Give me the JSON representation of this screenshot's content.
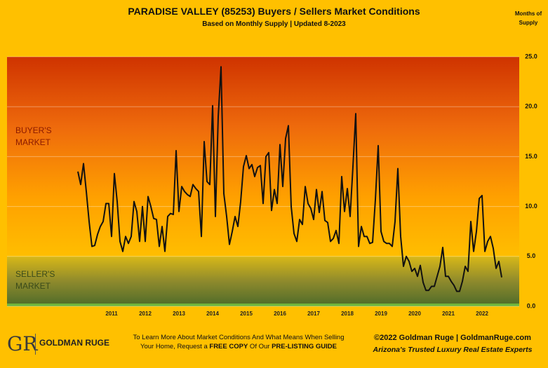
{
  "chart_data": {
    "type": "line",
    "title": "PARADISE VALLEY (85253) Buyers / Sellers Market Conditions",
    "subtitle": "Based on Monthly Supply | Updated 8-2023",
    "y_axis_label": "Months of Supply",
    "zones": {
      "buyer": "BUYER'S MARKET",
      "seller": "SELLER'S MARKET"
    },
    "color": "#111111",
    "ylim": [
      0,
      25
    ],
    "yticks": [
      {
        "value": 0,
        "label": "0.0"
      },
      {
        "value": 5,
        "label": "5.0"
      },
      {
        "value": 10,
        "label": "10.0"
      },
      {
        "value": 15,
        "label": "15.0"
      },
      {
        "value": 20,
        "label": "20.0"
      },
      {
        "value": 25,
        "label": "25.0"
      }
    ],
    "grid": true,
    "categories": [
      null,
      null,
      null,
      null,
      null,
      null,
      null,
      null,
      null,
      null,
      null,
      null,
      "2011",
      null,
      null,
      null,
      null,
      null,
      null,
      null,
      null,
      null,
      null,
      null,
      "2012",
      null,
      null,
      null,
      null,
      null,
      null,
      null,
      null,
      null,
      null,
      null,
      "2013",
      null,
      null,
      null,
      null,
      null,
      null,
      null,
      null,
      null,
      null,
      null,
      "2014",
      null,
      null,
      null,
      null,
      null,
      null,
      null,
      null,
      null,
      null,
      null,
      "2015",
      null,
      null,
      null,
      null,
      null,
      null,
      null,
      null,
      null,
      null,
      null,
      "2016",
      null,
      null,
      null,
      null,
      null,
      null,
      null,
      null,
      null,
      null,
      null,
      "2017",
      null,
      null,
      null,
      null,
      null,
      null,
      null,
      null,
      null,
      null,
      null,
      "2018",
      null,
      null,
      null,
      null,
      null,
      null,
      null,
      null,
      null,
      null,
      null,
      "2019",
      null,
      null,
      null,
      null,
      null,
      null,
      null,
      null,
      null,
      null,
      null,
      "2020",
      null,
      null,
      null,
      null,
      null,
      null,
      null,
      null,
      null,
      null,
      null,
      "2021",
      null,
      null,
      null,
      null,
      null,
      null,
      null,
      null,
      null,
      null,
      null,
      "2022",
      null,
      null,
      null,
      null,
      null,
      null,
      null
    ],
    "values": [
      13.5,
      12.2,
      14.3,
      11.5,
      8.5,
      6.0,
      6.1,
      7.2,
      8.0,
      8.5,
      10.3,
      10.3,
      7.0,
      13.3,
      10.5,
      6.5,
      5.5,
      7.0,
      6.3,
      7.0,
      10.5,
      9.5,
      6.5,
      10.0,
      6.5,
      11.0,
      10.0,
      8.8,
      8.7,
      6.0,
      8.0,
      5.5,
      9.0,
      9.3,
      9.2,
      15.6,
      9.5,
      12.0,
      11.5,
      11.2,
      11.0,
      12.2,
      11.8,
      11.5,
      7.0,
      16.5,
      12.5,
      12.2,
      20.1,
      9.0,
      19.0,
      24.0,
      11.3,
      9.0,
      6.2,
      7.5,
      9.0,
      8.0,
      10.5,
      14.0,
      15.1,
      13.8,
      14.2,
      13.0,
      13.9,
      14.1,
      10.3,
      15.0,
      15.4,
      9.6,
      11.7,
      10.3,
      16.2,
      12.0,
      16.8,
      18.1,
      10.0,
      7.3,
      6.5,
      8.7,
      8.2,
      12.0,
      10.3,
      9.8,
      8.7,
      11.7,
      9.4,
      11.5,
      8.6,
      8.4,
      6.5,
      6.8,
      7.6,
      6.3,
      13.0,
      9.5,
      11.8,
      9.0,
      14.0,
      19.3,
      6.0,
      8.0,
      7.0,
      7.0,
      6.3,
      6.4,
      10.7,
      16.1,
      7.5,
      6.5,
      6.3,
      6.3,
      6.0,
      8.5,
      13.8,
      7.0,
      4.0,
      5.0,
      4.5,
      3.5,
      3.8,
      3.0,
      4.1,
      2.4,
      1.6,
      1.6,
      2.0,
      2.0,
      3.0,
      4.0,
      5.9,
      3.0,
      3.0,
      2.5,
      2.1,
      1.5,
      1.5,
      2.5,
      4.0,
      3.5,
      8.5,
      5.5,
      7.5,
      10.8,
      11.1,
      5.5,
      6.5,
      7.0,
      5.8,
      3.8,
      4.5,
      2.9
    ]
  },
  "footer": {
    "logo_mark": "GR",
    "logo_name": "GOLDMAN RUGE",
    "cta": [
      "To Learn More About Market Conditions And What Means When Selling Your Home, Request a ",
      "FREE COPY",
      " Of Our ",
      "PRE-LISTING GUIDE"
    ],
    "copyright": "©2022 Goldman Ruge  |  GoldmanRuge.com",
    "tagline": "Arizona's Trusted Luxury Real Estate Experts"
  }
}
